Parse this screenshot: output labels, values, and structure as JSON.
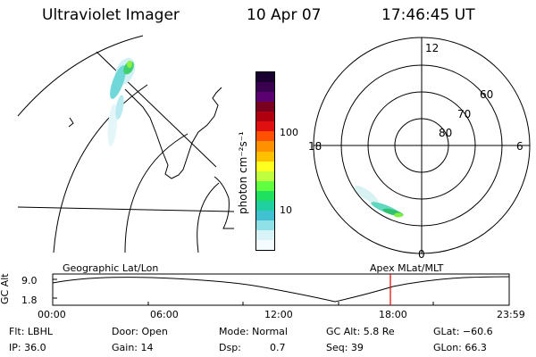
{
  "header": {
    "instrument": "Ultraviolet Imager",
    "date": "10 Apr 07",
    "time": "17:46:45 UT"
  },
  "colorbar": {
    "unit_label": "photon cm⁻²s⁻¹",
    "ticks": [
      "100",
      "10"
    ],
    "colors_top_to_bottom": [
      "#1a0030",
      "#3a0050",
      "#5a0070",
      "#7a0020",
      "#b00010",
      "#e01010",
      "#ff5000",
      "#ff9000",
      "#ffc000",
      "#ffff20",
      "#c0ff40",
      "#60ff40",
      "#20e060",
      "#20d0a0",
      "#40c0d0",
      "#90e0e8",
      "#d8f4f8",
      "#f4fcff"
    ]
  },
  "polar_plot": {
    "mlt_labels": {
      "top": "12",
      "right": "6",
      "bottom": "0",
      "left": "18"
    },
    "lat_labels": [
      "60",
      "70",
      "80"
    ]
  },
  "timeline": {
    "left_title": "Geographic Lat/Lon",
    "right_title": "Apex MLat/MLT",
    "y_axis_label": "GC Alt",
    "y_ticks": [
      "9.0",
      "1.8"
    ],
    "x_ticks": [
      "00:00",
      "06:00",
      "12:00",
      "18:00",
      "23:59"
    ],
    "marker_color": "#e00000"
  },
  "status": {
    "flt": "Flt: LBHL",
    "door": "Door: Open",
    "mode": "Mode: Normal",
    "gc_alt": "GC Alt: 5.8 Re",
    "glat": "GLat: −60.6",
    "ip": "IP: 36.0",
    "gain": "Gain: 14",
    "dsp_label": "Dsp:",
    "dsp_value": "0.7",
    "seq": "Seq: 39",
    "glon": "GLon: 66.3"
  }
}
